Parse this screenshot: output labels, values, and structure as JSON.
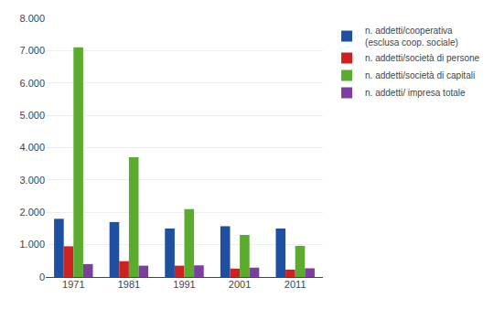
{
  "chart_data": {
    "type": "bar",
    "categories": [
      "1971",
      "1981",
      "1991",
      "2001",
      "2011"
    ],
    "series": [
      {
        "name": "n. addetti/cooperativa\n(esclusa coop. sociale)",
        "color": "#1f4fa0",
        "values": [
          1800,
          1700,
          1500,
          1570,
          1500
        ]
      },
      {
        "name": "n. addetti/società di persone",
        "color": "#cc2222",
        "values": [
          950,
          490,
          350,
          260,
          230
        ]
      },
      {
        "name": "n. addetti/società di capitali",
        "color": "#5aab2e",
        "values": [
          7100,
          3700,
          2100,
          1300,
          960
        ]
      },
      {
        "name": "n. addetti/ impresa totale",
        "color": "#7b3fa0",
        "values": [
          400,
          350,
          360,
          290,
          270
        ]
      }
    ],
    "ylim": [
      0,
      8000
    ],
    "yticks": [
      0,
      {
        "value": 1000,
        "label": "1.000"
      },
      {
        "value": 2000,
        "label": "2.000"
      },
      {
        "value": 3000,
        "label": "3.000"
      },
      {
        "value": 4000,
        "label": "4.000"
      },
      {
        "value": 5000,
        "label": "5.000"
      },
      {
        "value": 6000,
        "label": "6.000"
      },
      {
        "value": 7000,
        "label": "7.000"
      },
      {
        "value": 8000,
        "label": "8.000"
      }
    ],
    "grid": true,
    "legend": "upper right"
  }
}
